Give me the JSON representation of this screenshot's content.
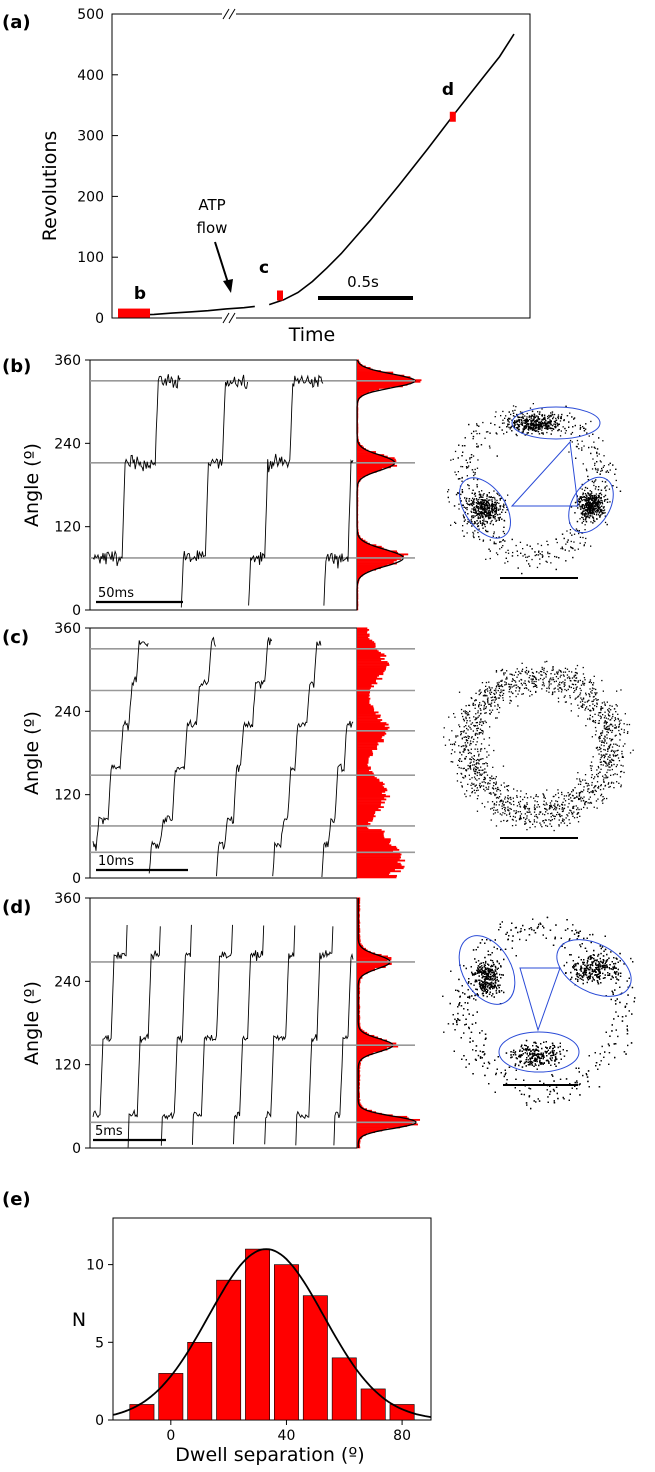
{
  "chart_data": [
    {
      "panel": "(a)",
      "type": "line",
      "ylabel": "Revolutions",
      "xlabel": "Time",
      "ylim": [
        0,
        500
      ],
      "yticks": [
        "0",
        "100",
        "200",
        "300",
        "400",
        "500"
      ],
      "annotations": {
        "b": "b",
        "c": "c",
        "d": "d",
        "flow": [
          "ATP",
          "flow"
        ],
        "scale": "0.5s"
      },
      "segment1": [
        [
          0,
          4
        ],
        [
          0.05,
          5
        ],
        [
          0.1,
          6
        ],
        [
          0.15,
          8
        ],
        [
          0.2,
          10
        ],
        [
          0.25,
          12
        ],
        [
          0.3,
          15
        ],
        [
          0.35,
          17
        ],
        [
          0.38,
          19
        ]
      ],
      "segment2": [
        [
          0.42,
          22
        ],
        [
          0.46,
          30
        ],
        [
          0.5,
          42
        ],
        [
          0.54,
          60
        ],
        [
          0.58,
          82
        ],
        [
          0.62,
          106
        ],
        [
          0.66,
          133
        ],
        [
          0.7,
          160
        ],
        [
          0.74,
          189
        ],
        [
          0.78,
          218
        ],
        [
          0.82,
          248
        ],
        [
          0.86,
          278
        ],
        [
          0.9,
          309
        ],
        [
          0.94,
          340
        ],
        [
          0.98,
          370
        ],
        [
          1.02,
          400
        ],
        [
          1.06,
          430
        ],
        [
          1.1,
          467
        ]
      ],
      "markers": [
        {
          "x": 0.05,
          "y": 4,
          "label": "b"
        },
        {
          "x": 0.45,
          "y": 37,
          "label": "c"
        },
        {
          "x": 0.93,
          "y": 331,
          "label": "d"
        }
      ]
    },
    {
      "panel": "(b)",
      "type": "line",
      "ylabel": "Angle (º)",
      "ylim": [
        0,
        360
      ],
      "yticks": [
        "0",
        "120",
        "240",
        "360"
      ],
      "scale": "50ms",
      "dwell_lines": [
        75,
        212,
        330
      ],
      "histogram_peaks": [
        {
          "angle": 75,
          "height": 0.8,
          "width": 22
        },
        {
          "angle": 212,
          "height": 0.65,
          "width": 20
        },
        {
          "angle": 330,
          "height": 1.0,
          "width": 18
        }
      ]
    },
    {
      "panel": "(c)",
      "type": "line",
      "ylabel": "Angle (º)",
      "ylim": [
        0,
        360
      ],
      "yticks": [
        "0",
        "120",
        "240",
        "360"
      ],
      "scale": "10ms",
      "dwell_lines": [
        37,
        75,
        148,
        212,
        270,
        330
      ]
    },
    {
      "panel": "(d)",
      "type": "line",
      "ylabel": "Angle (º)",
      "ylim": [
        0,
        360
      ],
      "yticks": [
        "0",
        "120",
        "240",
        "360"
      ],
      "scale": "5ms",
      "dwell_lines": [
        37,
        148,
        268
      ],
      "histogram_peaks": [
        {
          "angle": 37,
          "height": 1.0,
          "width": 16
        },
        {
          "angle": 148,
          "height": 0.6,
          "width": 17
        },
        {
          "angle": 268,
          "height": 0.55,
          "width": 18
        }
      ]
    },
    {
      "panel": "(e)",
      "type": "bar",
      "xlabel": "Dwell separation (º)",
      "ylabel": "N",
      "xlim": [
        -20,
        90
      ],
      "ylim": [
        0,
        13
      ],
      "xticks": [
        "0",
        "40",
        "80"
      ],
      "yticks": [
        "0",
        "5",
        "10"
      ],
      "bins": [
        -10,
        0,
        10,
        20,
        30,
        40,
        50,
        60,
        70,
        80
      ],
      "values": [
        1,
        3,
        5,
        9,
        11,
        10,
        8,
        4,
        2,
        1
      ],
      "fit": {
        "type": "gaussian",
        "mean": 33,
        "sigma": 20,
        "amplitude": 11
      }
    }
  ]
}
